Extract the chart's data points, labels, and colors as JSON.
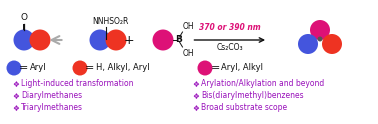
{
  "bg_color": "#ffffff",
  "blue_color": "#4455dd",
  "red_color": "#ee3322",
  "pink_color": "#dd1177",
  "purple_text": "#9911bb",
  "black": "#111111",
  "gray_arrow": "#aaaaaa",
  "bullet_symbol": "❖",
  "title_items_left": [
    "Light-induced transformation",
    "Diarylmethanes",
    "Triarylmethanes"
  ],
  "title_items_right": [
    "Arylation/Alkylation and beyond",
    "Bis(diarylmethyl)benzenes",
    "Broad substrate scope"
  ],
  "legend_blue": "Aryl",
  "legend_red": "H, Alkyl, Aryl",
  "legend_pink": "Aryl, Alkyl",
  "arrow_label_line1": "370 or 390 nm",
  "arrow_label_line2": "Cs₂CO₃",
  "sulfonyl_label": "NNHSO₂R",
  "carbonyl_label": "O",
  "boronic_label_top": "OH",
  "boronic_label_bot": "OH",
  "boronic_b": "B"
}
